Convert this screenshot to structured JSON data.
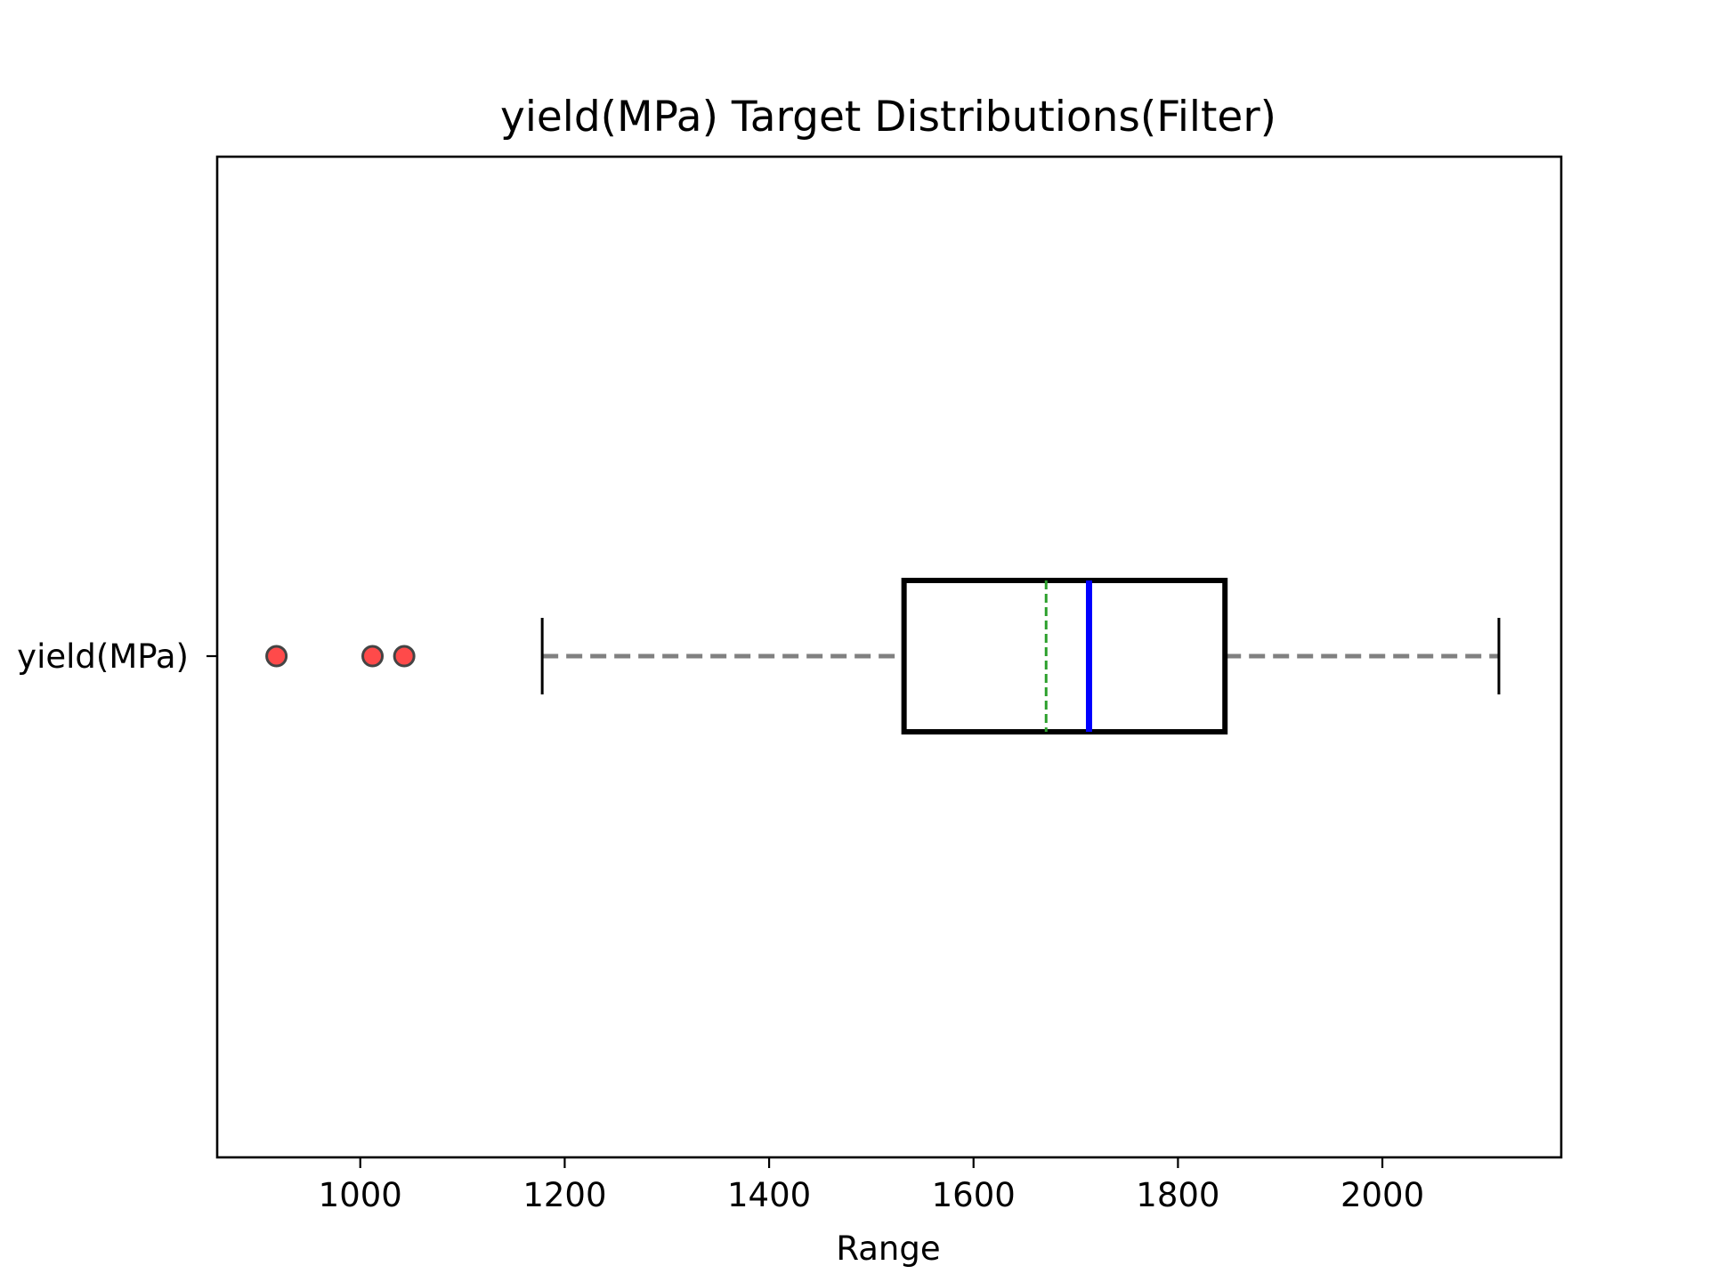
{
  "chart_data": {
    "type": "box",
    "title": "yield(MPa) Target Distributions(Filter)",
    "xlabel": "Range",
    "ylabel": "",
    "orientation": "horizontal",
    "xlim": [
      860,
      2175
    ],
    "x_ticks": [
      1000,
      1200,
      1400,
      1600,
      1800,
      2000
    ],
    "categories": [
      "yield(MPa)"
    ],
    "box": {
      "whisker_low": 1178,
      "q1": 1532,
      "median": 1713,
      "mean": 1671,
      "q3": 1846,
      "whisker_high": 2114,
      "outliers": [
        918,
        1012,
        1043
      ]
    },
    "colors": {
      "box": "#000000",
      "median": "#0000ff",
      "mean": "#2ca02c",
      "whisker_line": "#808080",
      "outlier_fill": "#ff4a4a",
      "outlier_edge": "#444444"
    },
    "grid": false,
    "legend": "none"
  }
}
